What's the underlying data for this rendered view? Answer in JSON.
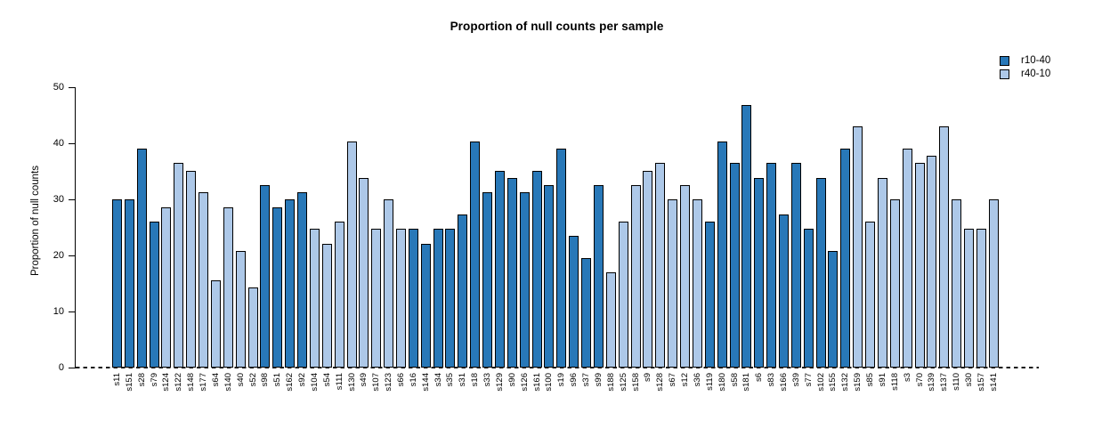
{
  "title": "Proportion of null counts per sample",
  "y_axis": {
    "label": "Proportion of null counts"
  },
  "legend": {
    "position": "top-right",
    "entries": [
      {
        "name": "r10-40",
        "color": "#2878b8"
      },
      {
        "name": "r40-10",
        "color": "#adc8e8"
      }
    ]
  },
  "chart_data": {
    "type": "bar",
    "title": "Proportion of null counts per sample",
    "xlabel": "",
    "ylabel": "Proportion of null counts",
    "ylim": [
      0,
      50
    ],
    "yticks": [
      0,
      10,
      20,
      30,
      40,
      50
    ],
    "grid": false,
    "legend_position": "top-right",
    "zero_line_style": "dashed",
    "bar_outline_color": "#000000",
    "series": [
      {
        "name": "r10-40",
        "color": "#2878b8"
      },
      {
        "name": "r40-10",
        "color": "#adc8e8"
      }
    ],
    "bars": [
      {
        "label": "s11",
        "series": "r10-40",
        "value": 29.9
      },
      {
        "label": "s151",
        "series": "r10-40",
        "value": 29.9
      },
      {
        "label": "s28",
        "series": "r10-40",
        "value": 39.0
      },
      {
        "label": "s79",
        "series": "r10-40",
        "value": 26.0
      },
      {
        "label": "s124",
        "series": "r40-10",
        "value": 28.6
      },
      {
        "label": "s122",
        "series": "r40-10",
        "value": 36.4
      },
      {
        "label": "s148",
        "series": "r40-10",
        "value": 35.1
      },
      {
        "label": "s177",
        "series": "r40-10",
        "value": 31.2
      },
      {
        "label": "s64",
        "series": "r40-10",
        "value": 15.6
      },
      {
        "label": "s140",
        "series": "r40-10",
        "value": 28.6
      },
      {
        "label": "s40",
        "series": "r40-10",
        "value": 20.8
      },
      {
        "label": "s52",
        "series": "r40-10",
        "value": 14.3
      },
      {
        "label": "s98",
        "series": "r10-40",
        "value": 32.5
      },
      {
        "label": "s51",
        "series": "r10-40",
        "value": 28.6
      },
      {
        "label": "s162",
        "series": "r10-40",
        "value": 29.9
      },
      {
        "label": "s92",
        "series": "r10-40",
        "value": 31.2
      },
      {
        "label": "s104",
        "series": "r40-10",
        "value": 24.7
      },
      {
        "label": "s54",
        "series": "r40-10",
        "value": 22.1
      },
      {
        "label": "s111",
        "series": "r40-10",
        "value": 26.0
      },
      {
        "label": "s130",
        "series": "r40-10",
        "value": 40.3
      },
      {
        "label": "s49",
        "series": "r40-10",
        "value": 33.8
      },
      {
        "label": "s107",
        "series": "r40-10",
        "value": 24.7
      },
      {
        "label": "s123",
        "series": "r40-10",
        "value": 29.9
      },
      {
        "label": "s66",
        "series": "r40-10",
        "value": 24.7
      },
      {
        "label": "s16",
        "series": "r10-40",
        "value": 24.7
      },
      {
        "label": "s144",
        "series": "r10-40",
        "value": 22.1
      },
      {
        "label": "s34",
        "series": "r10-40",
        "value": 24.7
      },
      {
        "label": "s35",
        "series": "r10-40",
        "value": 24.7
      },
      {
        "label": "s31",
        "series": "r10-40",
        "value": 27.3
      },
      {
        "label": "s18",
        "series": "r10-40",
        "value": 40.3
      },
      {
        "label": "s33",
        "series": "r10-40",
        "value": 31.2
      },
      {
        "label": "s129",
        "series": "r10-40",
        "value": 35.1
      },
      {
        "label": "s90",
        "series": "r10-40",
        "value": 33.8
      },
      {
        "label": "s126",
        "series": "r10-40",
        "value": 31.2
      },
      {
        "label": "s161",
        "series": "r10-40",
        "value": 35.1
      },
      {
        "label": "s100",
        "series": "r10-40",
        "value": 32.5
      },
      {
        "label": "s19",
        "series": "r10-40",
        "value": 39.0
      },
      {
        "label": "s96",
        "series": "r10-40",
        "value": 23.4
      },
      {
        "label": "s37",
        "series": "r10-40",
        "value": 19.5
      },
      {
        "label": "s99",
        "series": "r10-40",
        "value": 32.5
      },
      {
        "label": "s188",
        "series": "r40-10",
        "value": 16.9
      },
      {
        "label": "s125",
        "series": "r40-10",
        "value": 26.0
      },
      {
        "label": "s158",
        "series": "r40-10",
        "value": 32.5
      },
      {
        "label": "s9",
        "series": "r40-10",
        "value": 35.1
      },
      {
        "label": "s128",
        "series": "r40-10",
        "value": 36.4
      },
      {
        "label": "s67",
        "series": "r40-10",
        "value": 29.9
      },
      {
        "label": "s12",
        "series": "r40-10",
        "value": 32.5
      },
      {
        "label": "s36",
        "series": "r40-10",
        "value": 29.9
      },
      {
        "label": "s119",
        "series": "r10-40",
        "value": 26.0
      },
      {
        "label": "s180",
        "series": "r10-40",
        "value": 40.3
      },
      {
        "label": "s58",
        "series": "r10-40",
        "value": 36.4
      },
      {
        "label": "s181",
        "series": "r10-40",
        "value": 46.8
      },
      {
        "label": "s6",
        "series": "r10-40",
        "value": 33.8
      },
      {
        "label": "s83",
        "series": "r10-40",
        "value": 36.4
      },
      {
        "label": "s166",
        "series": "r10-40",
        "value": 27.3
      },
      {
        "label": "s39",
        "series": "r10-40",
        "value": 36.4
      },
      {
        "label": "s77",
        "series": "r10-40",
        "value": 24.7
      },
      {
        "label": "s102",
        "series": "r10-40",
        "value": 33.8
      },
      {
        "label": "s155",
        "series": "r10-40",
        "value": 20.8
      },
      {
        "label": "s132",
        "series": "r10-40",
        "value": 39.0
      },
      {
        "label": "s159",
        "series": "r40-10",
        "value": 42.9
      },
      {
        "label": "s85",
        "series": "r40-10",
        "value": 26.0
      },
      {
        "label": "s91",
        "series": "r40-10",
        "value": 33.8
      },
      {
        "label": "s118",
        "series": "r40-10",
        "value": 29.9
      },
      {
        "label": "s3",
        "series": "r40-10",
        "value": 39.0
      },
      {
        "label": "s70",
        "series": "r40-10",
        "value": 36.4
      },
      {
        "label": "s139",
        "series": "r40-10",
        "value": 37.7
      },
      {
        "label": "s137",
        "series": "r40-10",
        "value": 42.9
      },
      {
        "label": "s110",
        "series": "r40-10",
        "value": 29.9
      },
      {
        "label": "s30",
        "series": "r40-10",
        "value": 24.7
      },
      {
        "label": "s157",
        "series": "r40-10",
        "value": 24.7
      },
      {
        "label": "s141",
        "series": "r40-10",
        "value": 29.9
      }
    ]
  }
}
